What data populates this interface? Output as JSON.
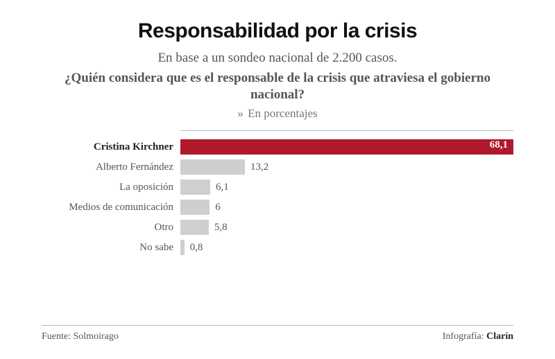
{
  "chart": {
    "type": "bar-horizontal",
    "title": "Responsabilidad por la crisis",
    "subtitle": "En base a un sondeo nacional de 2.200 casos.",
    "question": "¿Quién considera que es el responsable de la crisis que atraviesa el gobierno nacional?",
    "unit_prefix": "»",
    "unit_label": "En porcentajes",
    "max_value": 68.1,
    "bar_colors": {
      "default": "#cfcfcf",
      "highlight": "#b0182b"
    },
    "text_colors": {
      "title": "#111111",
      "body": "#555555",
      "value_inside": "#ffffff"
    },
    "background_color": "#ffffff",
    "grid_color": "#b8b8b8",
    "label_fontsize": 15,
    "title_fontsize": 30,
    "items": [
      {
        "label": "Cristina Kirchner",
        "value": 68.1,
        "display": "68,1",
        "highlight": true,
        "value_inside": true
      },
      {
        "label": "Alberto Fernández",
        "value": 13.2,
        "display": "13,2",
        "highlight": false,
        "value_inside": false
      },
      {
        "label": "La oposición",
        "value": 6.1,
        "display": "6,1",
        "highlight": false,
        "value_inside": false
      },
      {
        "label": "Medios de comunicación",
        "value": 6.0,
        "display": "6",
        "highlight": false,
        "value_inside": false
      },
      {
        "label": "Otro",
        "value": 5.8,
        "display": "5,8",
        "highlight": false,
        "value_inside": false
      },
      {
        "label": "No sabe",
        "value": 0.8,
        "display": "0,8",
        "highlight": false,
        "value_inside": false
      }
    ]
  },
  "footer": {
    "source_label": "Fuente:",
    "source_value": "Solmoirago",
    "credit_label": "Infografía:",
    "credit_value": "Clarín"
  }
}
